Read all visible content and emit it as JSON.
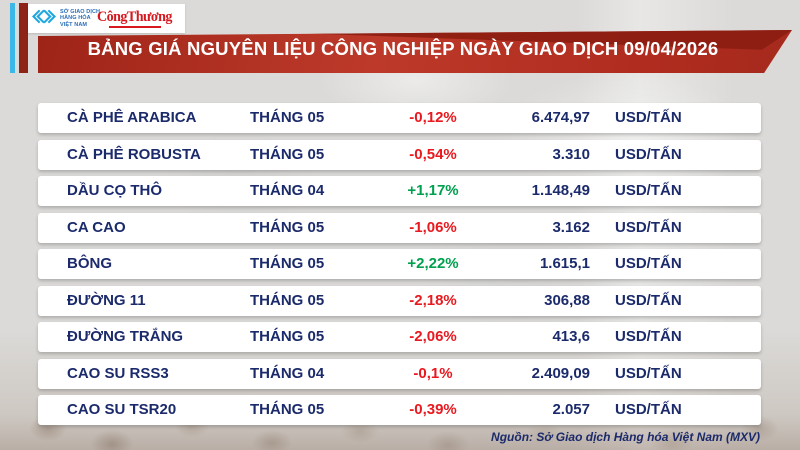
{
  "header": {
    "mxv_logo_lines": [
      "SỞ GIAO DỊCH",
      "HÀNG HÓA",
      "VIỆT NAM"
    ],
    "congthuong_logo": "CôngThương",
    "title": "BẢNG GIÁ NGUYÊN LIỆU CÔNG NGHIỆP NGÀY GIAO DỊCH 09/04/2026"
  },
  "table": {
    "rows": [
      {
        "name": "CÀ PHÊ ARABICA",
        "month": "THÁNG 05",
        "change": "-0,12%",
        "direction": "down",
        "price": "6.474,97",
        "unit": "USD/TẤN"
      },
      {
        "name": "CÀ PHÊ ROBUSTA",
        "month": "THÁNG 05",
        "change": "-0,54%",
        "direction": "down",
        "price": "3.310",
        "unit": "USD/TẤN"
      },
      {
        "name": "DẦU CỌ THÔ",
        "month": "THÁNG 04",
        "change": "+1,17%",
        "direction": "up",
        "price": "1.148,49",
        "unit": "USD/TẤN"
      },
      {
        "name": "CA CAO",
        "month": "THÁNG 05",
        "change": "-1,06%",
        "direction": "down",
        "price": "3.162",
        "unit": "USD/TẤN"
      },
      {
        "name": "BÔNG",
        "month": "THÁNG 05",
        "change": "+2,22%",
        "direction": "up",
        "price": "1.615,1",
        "unit": "USD/TẤN"
      },
      {
        "name": "ĐƯỜNG 11",
        "month": "THÁNG 05",
        "change": "-2,18%",
        "direction": "down",
        "price": "306,88",
        "unit": "USD/TẤN"
      },
      {
        "name": "ĐƯỜNG TRẮNG",
        "month": "THÁNG 05",
        "change": "-2,06%",
        "direction": "down",
        "price": "413,6",
        "unit": "USD/TẤN"
      },
      {
        "name": "CAO SU RSS3",
        "month": "THÁNG 04",
        "change": "-0,1%",
        "direction": "down",
        "price": "2.409,09",
        "unit": "USD/TẤN"
      },
      {
        "name": "CAO SU TSR20",
        "month": "THÁNG 05",
        "change": "-0,39%",
        "direction": "down",
        "price": "2.057",
        "unit": "USD/TẤN"
      }
    ]
  },
  "footer": {
    "source": "Nguồn: Sở Giao dịch Hàng hóa Việt Nam (MXV)"
  },
  "colors": {
    "banner_red": "#b02c1f",
    "banner_red_dark": "#8a1c11",
    "navy_text": "#1b2a6b",
    "down_red": "#e8191f",
    "up_green": "#00a14e",
    "mxv_cyan": "#1ea7df",
    "congthuong_red": "#d6181f",
    "accent_cyan_bar": "#3bb7e8",
    "accent_darkred_bar": "#8e2318"
  },
  "chart_data": {
    "type": "table",
    "title": "BẢNG GIÁ NGUYÊN LIỆU CÔNG NGHIỆP NGÀY GIAO DỊCH 09/04/2026",
    "rows": [
      [
        "CÀ PHÊ ARABICA",
        "THÁNG 05",
        "-0,12%",
        "6.474,97",
        "USD/TẤN"
      ],
      [
        "CÀ PHÊ ROBUSTA",
        "THÁNG 05",
        "-0,54%",
        "3.310",
        "USD/TẤN"
      ],
      [
        "DẦU CỌ THÔ",
        "THÁNG 04",
        "+1,17%",
        "1.148,49",
        "USD/TẤN"
      ],
      [
        "CA CAO",
        "THÁNG 05",
        "-1,06%",
        "3.162",
        "USD/TẤN"
      ],
      [
        "BÔNG",
        "THÁNG 05",
        "+2,22%",
        "1.615,1",
        "USD/TẤN"
      ],
      [
        "ĐƯỜNG 11",
        "THÁNG 05",
        "-2,18%",
        "306,88",
        "USD/TẤN"
      ],
      [
        "ĐƯỜNG TRẮNG",
        "THÁNG 05",
        "-2,06%",
        "413,6",
        "USD/TẤN"
      ],
      [
        "CAO SU RSS3",
        "THÁNG 04",
        "-0,1%",
        "2.409,09",
        "USD/TẤN"
      ],
      [
        "CAO SU TSR20",
        "THÁNG 05",
        "-0,39%",
        "2.057",
        "USD/TẤN"
      ]
    ],
    "source": "Nguồn: Sở Giao dịch Hàng hóa Việt Nam (MXV)"
  }
}
